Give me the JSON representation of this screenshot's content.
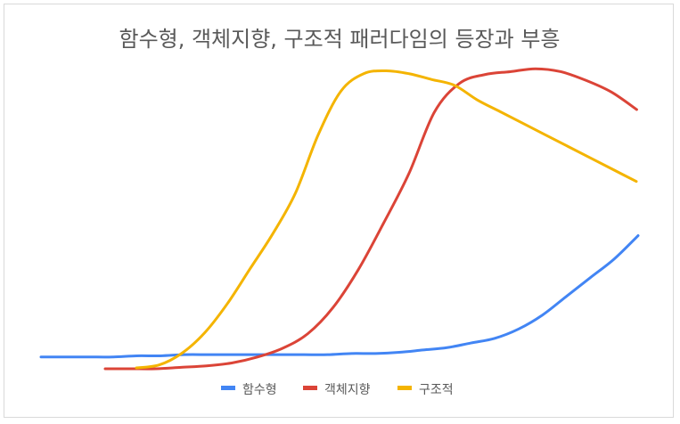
{
  "chart_data": {
    "type": "line",
    "title": "함수형, 객체지향, 구조적 패러다임의 등장과 부흥",
    "xlabel": "",
    "ylabel": "",
    "grid": false,
    "legend_position": "bottom",
    "axes_visible": false,
    "ylim": [
      0,
      100
    ],
    "series": [
      {
        "name": "함수형",
        "color": "#4285F4",
        "points": [
          [
            0,
            2
          ],
          [
            2,
            2
          ],
          [
            4,
            2
          ],
          [
            6,
            2
          ],
          [
            8,
            2.5
          ],
          [
            10,
            2.5
          ],
          [
            12,
            3
          ],
          [
            14,
            3
          ],
          [
            16,
            3
          ],
          [
            18,
            3
          ],
          [
            20,
            3
          ],
          [
            22,
            3
          ],
          [
            24,
            3
          ],
          [
            26,
            3.5
          ],
          [
            28,
            3.5
          ],
          [
            30,
            4
          ],
          [
            32,
            5
          ],
          [
            34,
            6
          ],
          [
            36,
            8
          ],
          [
            38,
            10
          ],
          [
            40,
            14
          ],
          [
            42,
            20
          ],
          [
            44,
            28
          ],
          [
            46,
            36
          ],
          [
            48,
            44
          ],
          [
            50,
            54
          ]
        ]
      },
      {
        "name": "객체지향",
        "color": "#DB4437",
        "points": [
          [
            0,
            0
          ],
          [
            2,
            0
          ],
          [
            4,
            0
          ],
          [
            6,
            0.5
          ],
          [
            8,
            1
          ],
          [
            10,
            2
          ],
          [
            12,
            4
          ],
          [
            14,
            7
          ],
          [
            16,
            12
          ],
          [
            18,
            21
          ],
          [
            20,
            34
          ],
          [
            22,
            50
          ],
          [
            24,
            67
          ],
          [
            26,
            88
          ],
          [
            28,
            98
          ],
          [
            30,
            101
          ],
          [
            32,
            102
          ],
          [
            34,
            103
          ],
          [
            36,
            102
          ],
          [
            38,
            99
          ],
          [
            40,
            95
          ],
          [
            42,
            89
          ]
        ]
      },
      {
        "name": "구조적",
        "color": "#F4B400",
        "points": [
          [
            0,
            0
          ],
          [
            1,
            1
          ],
          [
            2,
            5
          ],
          [
            3,
            12
          ],
          [
            4,
            22
          ],
          [
            5,
            34
          ],
          [
            6,
            46
          ],
          [
            7,
            60
          ],
          [
            8,
            80
          ],
          [
            9,
            95
          ],
          [
            10,
            101
          ],
          [
            11,
            102
          ],
          [
            12,
            101
          ],
          [
            13,
            99
          ],
          [
            14,
            97
          ],
          [
            15,
            92
          ],
          [
            16,
            88
          ],
          [
            17,
            84
          ],
          [
            18,
            80
          ],
          [
            19,
            76
          ],
          [
            20,
            72
          ],
          [
            21,
            68
          ],
          [
            22,
            64
          ]
        ]
      }
    ]
  }
}
